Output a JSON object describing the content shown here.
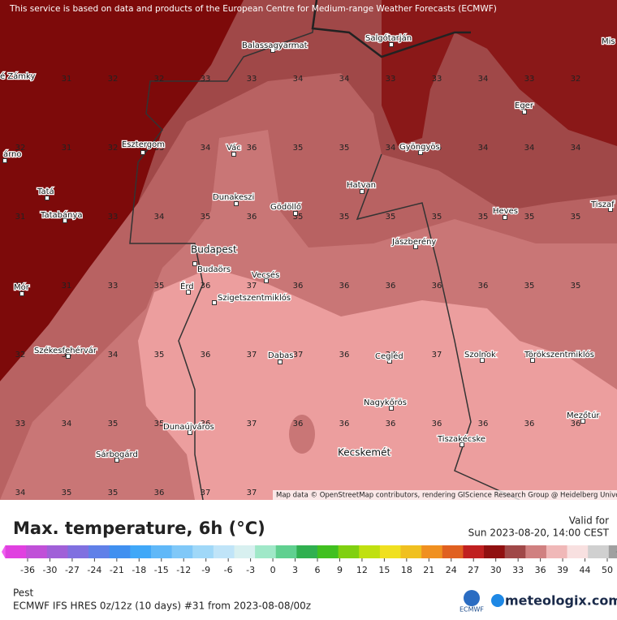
{
  "notice": "This service is based on data and products of the European Centre for Medium-range Weather Forecasts (ECMWF)",
  "attribution": "Map data © OpenStreetMap contributors, rendering GIScience Research Group @ Heidelberg University",
  "cities": [
    "Balassagyarmat",
    "Salgótarján",
    "Mis",
    "é Zámky",
    "Eger",
    "árno",
    "Esztergom",
    "Vác",
    "Gyöngyös",
    "Tatá",
    "Dunakeszi",
    "Gödöllő",
    "Hatvan",
    "Tatabánya",
    "Heves",
    "Tiszaf",
    "Budapest",
    "Jászberény",
    "Budaörs",
    "Vecsés",
    "Mór",
    "Érd",
    "Szigetszentmiklós",
    "Székesfehérvár",
    "Dabas",
    "Cegléd",
    "Szolnok",
    "Törökszentmiklós",
    "Nagykőrös",
    "Dunaújváros",
    "Mezőtúr",
    "Tiszakécske",
    "Kecskemét",
    "Sárbogárd"
  ],
  "grid_rows": [
    [
      null,
      31,
      32,
      32,
      33,
      33,
      34,
      34,
      33,
      33,
      34,
      33,
      32
    ],
    [
      32,
      31,
      32,
      33,
      34,
      36,
      35,
      35,
      34,
      35,
      34,
      34,
      34
    ],
    [
      31,
      32,
      33,
      34,
      35,
      36,
      35,
      35,
      35,
      35,
      35,
      35,
      35
    ],
    [
      32,
      31,
      33,
      35,
      36,
      37,
      36,
      36,
      36,
      36,
      36,
      35,
      35
    ],
    [
      32,
      33,
      34,
      35,
      36,
      37,
      37,
      36,
      37,
      37,
      36,
      36,
      36
    ],
    [
      33,
      34,
      35,
      35,
      36,
      37,
      36,
      36,
      36,
      36,
      36,
      36,
      36
    ],
    [
      34,
      35,
      35,
      36,
      37,
      37
    ]
  ],
  "title": "Max. temperature, 6h (°C)",
  "valid_label": "Valid for",
  "valid_time": "Sun 2023-08-20, 14:00 CEST",
  "colorbar_ticks": [
    -36,
    -30,
    -27,
    -24,
    -21,
    -18,
    -15,
    -12,
    -9,
    -6,
    -3,
    0,
    3,
    6,
    9,
    12,
    15,
    18,
    21,
    24,
    27,
    30,
    33,
    36,
    39,
    44,
    50
  ],
  "region": "Pest",
  "model": "ECMWF IFS HRES 0z/12z (10 days) #31 from  2023-08-08/00z",
  "ecmwf_logo": "ECMWF",
  "brand": "meteologix.com"
}
